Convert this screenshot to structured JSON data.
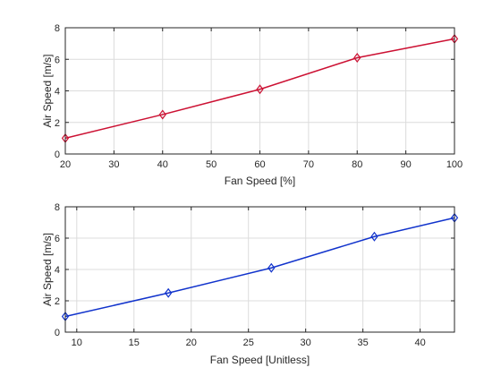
{
  "chart_data": [
    {
      "type": "line",
      "xlabel": "Fan Speed [%]",
      "ylabel": "Air Speed [m/s]",
      "xlim": [
        20,
        100
      ],
      "ylim": [
        0,
        8
      ],
      "xticks": [
        "20",
        "30",
        "40",
        "50",
        "60",
        "70",
        "80",
        "90",
        "100"
      ],
      "yticks": [
        "0",
        "2",
        "4",
        "6",
        "8"
      ],
      "grid": true,
      "series": [
        {
          "color": "#cc1133",
          "marker": "diamond",
          "x": [
            20,
            40,
            60,
            80,
            100
          ],
          "y": [
            1.0,
            2.5,
            4.1,
            6.1,
            7.3
          ]
        }
      ]
    },
    {
      "type": "line",
      "xlabel": "Fan Speed [Unitless]",
      "ylabel": "Air Speed [m/s]",
      "xlim": [
        9,
        43
      ],
      "ylim": [
        0,
        8
      ],
      "xticks": [
        "10",
        "15",
        "20",
        "25",
        "30",
        "35",
        "40"
      ],
      "yticks": [
        "0",
        "2",
        "4",
        "6",
        "8"
      ],
      "grid": true,
      "series": [
        {
          "color": "#1133cc",
          "marker": "diamond",
          "x": [
            9,
            18,
            27,
            36,
            43
          ],
          "y": [
            1.0,
            2.5,
            4.1,
            6.1,
            7.3
          ]
        }
      ]
    }
  ]
}
